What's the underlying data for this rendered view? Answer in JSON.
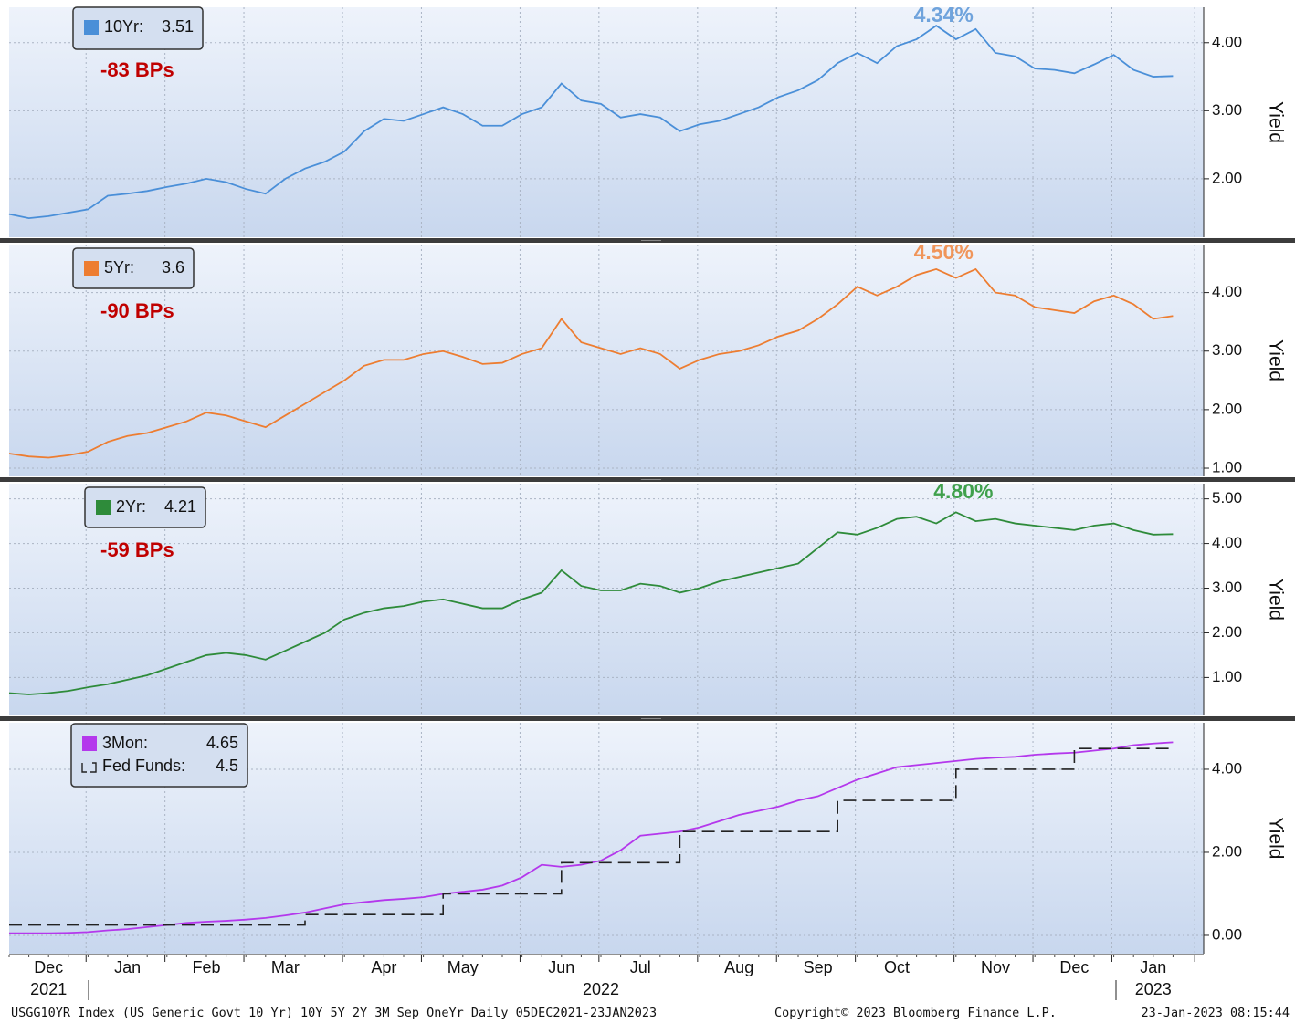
{
  "chart_data": [
    {
      "type": "line",
      "series": [
        {
          "name": "10Yr:",
          "color": "#4a8fd8",
          "values": [
            1.48,
            1.42,
            1.45,
            1.5,
            1.55,
            1.75,
            1.78,
            1.82,
            1.88,
            1.93,
            2.0,
            1.95,
            1.85,
            1.78,
            2.0,
            2.15,
            2.25,
            2.4,
            2.7,
            2.88,
            2.85,
            2.95,
            3.05,
            2.95,
            2.78,
            2.78,
            2.95,
            3.05,
            3.4,
            3.15,
            3.1,
            2.9,
            2.95,
            2.9,
            2.7,
            2.8,
            2.85,
            2.95,
            3.05,
            3.2,
            3.3,
            3.45,
            3.7,
            3.85,
            3.7,
            3.95,
            4.05,
            4.25,
            4.05,
            4.2,
            3.85,
            3.8,
            3.62,
            3.6,
            3.55,
            3.68,
            3.82,
            3.6,
            3.5,
            3.51
          ]
        }
      ],
      "ylim": [
        1.14,
        4.52
      ],
      "yticks": [
        {
          "value": 2,
          "label": "2.00"
        },
        {
          "value": 3,
          "label": "3.00"
        },
        {
          "value": 4,
          "label": "4.00"
        }
      ],
      "y_label": "Yield",
      "peak_label": {
        "text": "4.34%",
        "color": "#6fa3dc"
      },
      "change_label": {
        "text": "-83 BPs",
        "color": "#c00000"
      }
    },
    {
      "type": "line",
      "series": [
        {
          "name": "5Yr:",
          "color": "#ed7d31",
          "values": [
            1.25,
            1.2,
            1.18,
            1.22,
            1.28,
            1.45,
            1.55,
            1.6,
            1.7,
            1.8,
            1.95,
            1.9,
            1.8,
            1.7,
            1.9,
            2.1,
            2.3,
            2.5,
            2.75,
            2.85,
            2.85,
            2.95,
            3.0,
            2.9,
            2.78,
            2.8,
            2.95,
            3.05,
            3.55,
            3.15,
            3.05,
            2.95,
            3.05,
            2.95,
            2.7,
            2.85,
            2.95,
            3.0,
            3.1,
            3.25,
            3.35,
            3.55,
            3.8,
            4.1,
            3.95,
            4.1,
            4.3,
            4.4,
            4.25,
            4.4,
            4.0,
            3.95,
            3.75,
            3.7,
            3.65,
            3.85,
            3.95,
            3.8,
            3.55,
            3.6
          ]
        }
      ],
      "ylim": [
        0.86,
        4.82
      ],
      "yticks": [
        {
          "value": 1,
          "label": "1.00"
        },
        {
          "value": 2,
          "label": "2.00"
        },
        {
          "value": 3,
          "label": "3.00"
        },
        {
          "value": 4,
          "label": "4.00"
        }
      ],
      "y_label": "Yield",
      "peak_label": {
        "text": "4.50%",
        "color": "#f0955a"
      },
      "change_label": {
        "text": "-90 BPs",
        "color": "#c00000"
      }
    },
    {
      "type": "line",
      "series": [
        {
          "name": "2Yr:",
          "color": "#2e8b3a",
          "values": [
            0.65,
            0.62,
            0.65,
            0.7,
            0.78,
            0.85,
            0.95,
            1.05,
            1.2,
            1.35,
            1.5,
            1.55,
            1.5,
            1.4,
            1.6,
            1.8,
            2.0,
            2.3,
            2.45,
            2.55,
            2.6,
            2.7,
            2.75,
            2.65,
            2.55,
            2.55,
            2.75,
            2.9,
            3.4,
            3.05,
            2.95,
            2.95,
            3.1,
            3.05,
            2.9,
            3.0,
            3.15,
            3.25,
            3.35,
            3.45,
            3.55,
            3.9,
            4.25,
            4.2,
            4.35,
            4.55,
            4.6,
            4.45,
            4.7,
            4.5,
            4.55,
            4.45,
            4.4,
            4.35,
            4.3,
            4.4,
            4.45,
            4.3,
            4.2,
            4.21
          ]
        }
      ],
      "ylim": [
        0.15,
        5.34
      ],
      "yticks": [
        {
          "value": 1,
          "label": "1.00"
        },
        {
          "value": 2,
          "label": "2.00"
        },
        {
          "value": 3,
          "label": "3.00"
        },
        {
          "value": 4,
          "label": "4.00"
        },
        {
          "value": 5,
          "label": "5.00"
        }
      ],
      "y_label": "Yield",
      "peak_label": {
        "text": "4.80%",
        "color": "#3fa04c"
      },
      "change_label": {
        "text": "-59 BPs",
        "color": "#c00000"
      }
    },
    {
      "type": "line",
      "series": [
        {
          "name": "3Mon:",
          "color": "#b438ec",
          "values": [
            0.05,
            0.05,
            0.05,
            0.06,
            0.08,
            0.12,
            0.15,
            0.2,
            0.25,
            0.3,
            0.33,
            0.35,
            0.38,
            0.42,
            0.48,
            0.55,
            0.65,
            0.75,
            0.8,
            0.85,
            0.88,
            0.92,
            1.0,
            1.05,
            1.1,
            1.2,
            1.4,
            1.7,
            1.65,
            1.7,
            1.8,
            2.05,
            2.4,
            2.45,
            2.5,
            2.6,
            2.75,
            2.9,
            3.0,
            3.1,
            3.25,
            3.35,
            3.55,
            3.75,
            3.9,
            4.05,
            4.1,
            4.15,
            4.2,
            4.25,
            4.28,
            4.3,
            4.35,
            4.38,
            4.4,
            4.45,
            4.5,
            4.58,
            4.62,
            4.65
          ]
        },
        {
          "name": "Fed Funds:",
          "color": "#222222",
          "style": "dashed-step",
          "values": [
            0.25,
            0.25,
            0.25,
            0.25,
            0.25,
            0.25,
            0.25,
            0.25,
            0.25,
            0.25,
            0.25,
            0.25,
            0.25,
            0.25,
            0.25,
            0.5,
            0.5,
            0.5,
            0.5,
            0.5,
            0.5,
            0.5,
            1.0,
            1.0,
            1.0,
            1.0,
            1.0,
            1.0,
            1.75,
            1.75,
            1.75,
            1.75,
            1.75,
            1.75,
            2.5,
            2.5,
            2.5,
            2.5,
            2.5,
            2.5,
            2.5,
            2.5,
            3.25,
            3.25,
            3.25,
            3.25,
            3.25,
            3.25,
            4.0,
            4.0,
            4.0,
            4.0,
            4.0,
            4.0,
            4.5,
            4.5,
            4.5,
            4.5,
            4.5,
            4.5
          ]
        }
      ],
      "ylim": [
        -0.44,
        5.12
      ],
      "yticks": [
        {
          "value": 0,
          "label": "0.00"
        },
        {
          "value": 2,
          "label": "2.00"
        },
        {
          "value": 4,
          "label": "4.00"
        }
      ],
      "y_label": "Yield"
    }
  ],
  "x_axis": {
    "categories": [
      null,
      null,
      "Dec",
      null,
      null,
      null,
      "Jan",
      null,
      null,
      null,
      "Feb",
      null,
      null,
      null,
      "Mar",
      null,
      null,
      null,
      null,
      "Apr",
      null,
      null,
      null,
      "May",
      null,
      null,
      null,
      null,
      "Jun",
      null,
      null,
      null,
      "Jul",
      null,
      null,
      null,
      null,
      "Aug",
      null,
      null,
      null,
      "Sep",
      null,
      null,
      null,
      "Oct",
      null,
      null,
      null,
      null,
      "Nov",
      null,
      null,
      null,
      "Dec",
      null,
      null,
      null,
      "Jan",
      null
    ],
    "years": [
      null,
      null,
      "2021",
      null,
      null,
      null,
      null,
      null,
      null,
      null,
      null,
      null,
      null,
      null,
      null,
      null,
      null,
      null,
      null,
      null,
      null,
      null,
      null,
      null,
      null,
      null,
      null,
      null,
      null,
      null,
      "2022",
      null,
      null,
      null,
      null,
      null,
      null,
      null,
      null,
      null,
      null,
      null,
      null,
      null,
      null,
      null,
      null,
      null,
      null,
      null,
      null,
      null,
      null,
      null,
      null,
      null,
      null,
      null,
      "2023",
      null
    ]
  },
  "footer": {
    "left": "USGG10YR Index (US Generic Govt 10 Yr) 10Y 5Y 2Y 3M Sep OneYr  Daily 05DEC2021-23JAN2023",
    "center": "Copyright© 2023 Bloomberg Finance L.P.",
    "right": "23-Jan-2023 08:15:44"
  }
}
